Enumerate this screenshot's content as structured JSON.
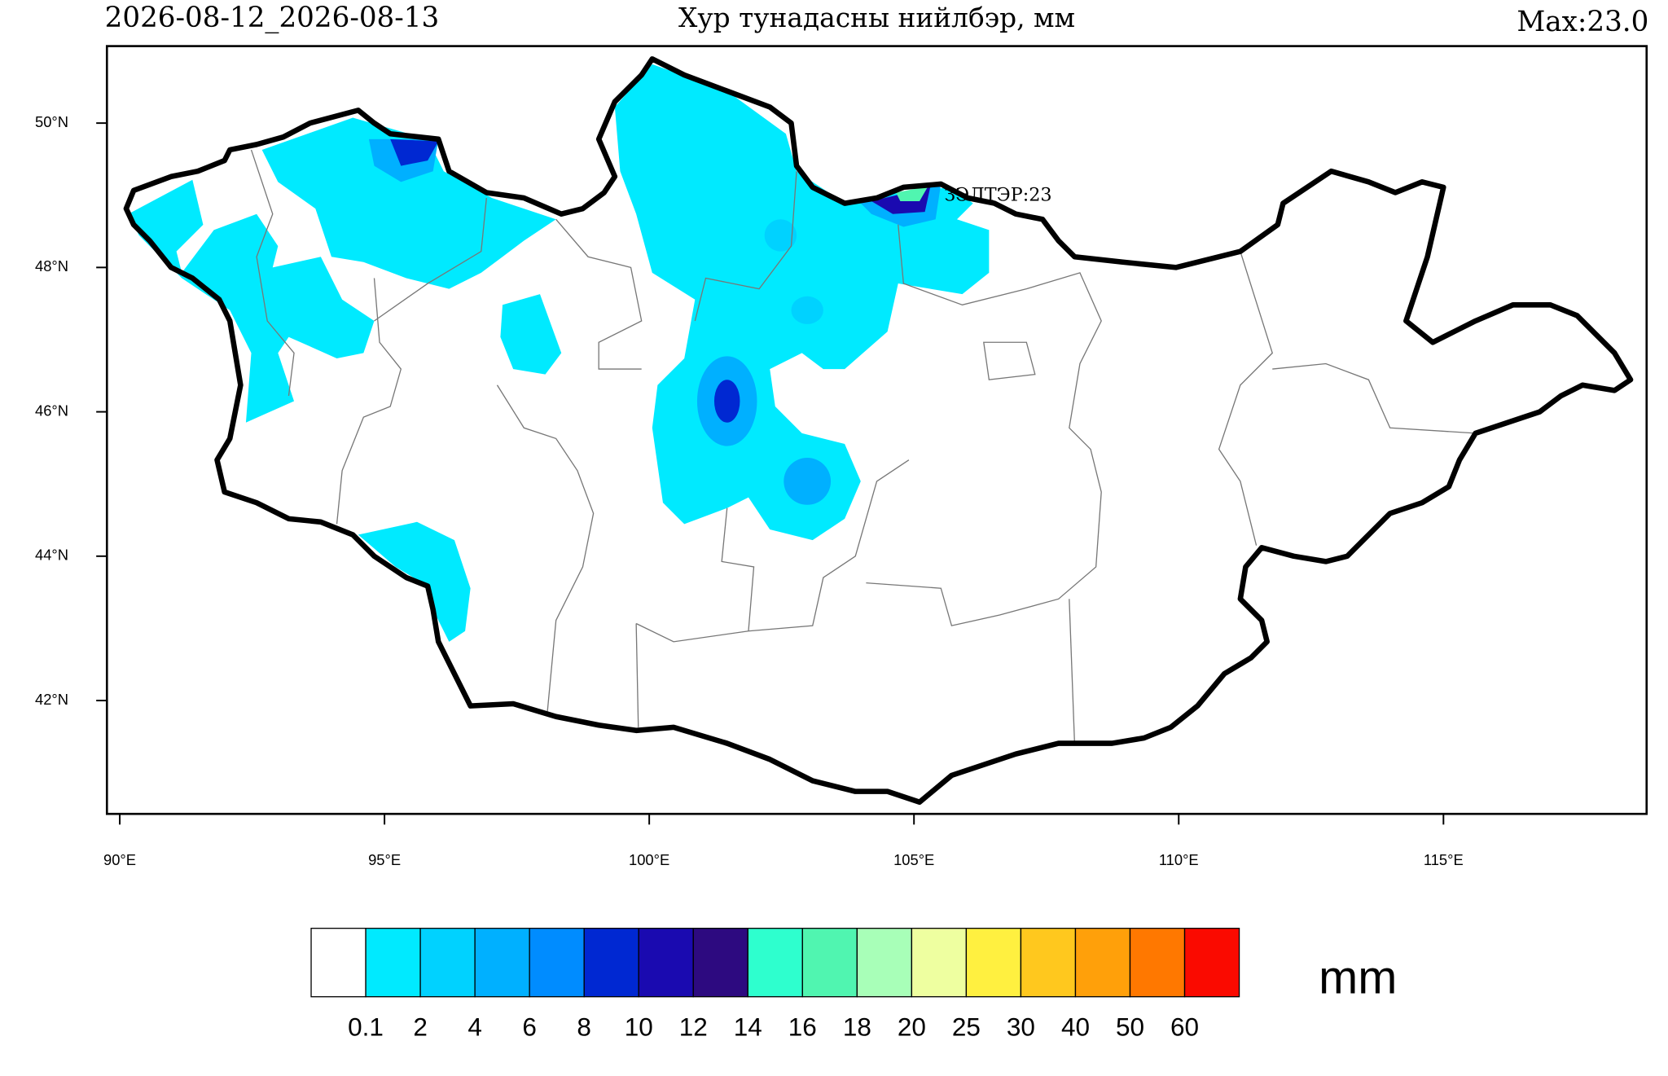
{
  "header": {
    "period": "2026-08-12_2026-08-13",
    "title": "Хур тунадасны нийлбэр, мм",
    "max": "Max:23.0"
  },
  "map": {
    "station_label": "ЗЭЛТЭР:23",
    "lat_labels": [
      "50°N",
      "48°N",
      "46°N",
      "44°N",
      "42°N"
    ],
    "lon_labels": [
      "90°E",
      "95°E",
      "100°E",
      "105°E",
      "110°E",
      "115°E"
    ]
  },
  "colorbar": {
    "unit": "mm",
    "labels": [
      "0.1",
      "2",
      "4",
      "6",
      "8",
      "10",
      "12",
      "14",
      "16",
      "18",
      "20",
      "25",
      "30",
      "40",
      "50",
      "60"
    ],
    "colors": [
      "#ffffff",
      "#00eaff",
      "#00d2ff",
      "#00b0ff",
      "#008cff",
      "#0028d2",
      "#1a0ab0",
      "#2d0a80",
      "#2effce",
      "#50f5b0",
      "#a8ffb8",
      "#eeffa0",
      "#fff040",
      "#ffc81e",
      "#ffa00a",
      "#ff7800",
      "#fa0a00"
    ]
  }
}
